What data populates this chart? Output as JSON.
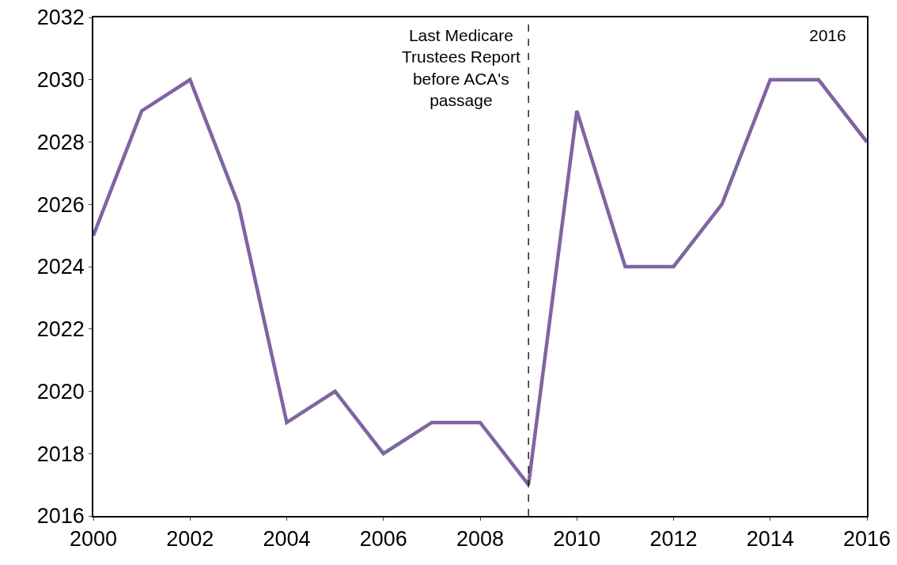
{
  "chart_data": {
    "type": "line",
    "x": [
      2000,
      2001,
      2002,
      2003,
      2004,
      2005,
      2006,
      2007,
      2008,
      2009,
      2010,
      2011,
      2012,
      2013,
      2014,
      2015,
      2016
    ],
    "series": [
      {
        "color": "#8064a2",
        "values": [
          2025,
          2029,
          2030,
          2026,
          2019,
          2020,
          2018,
          2019,
          2019,
          2017,
          2029,
          2024,
          2024,
          2026,
          2030,
          2030,
          2028
        ]
      }
    ],
    "xlim": [
      2000,
      2016
    ],
    "xticks": [
      2000,
      2002,
      2004,
      2006,
      2008,
      2010,
      2012,
      2014,
      2016
    ],
    "ylim": [
      2016,
      2032
    ],
    "yticks": [
      2016,
      2018,
      2020,
      2022,
      2024,
      2026,
      2028,
      2030,
      2032
    ],
    "ref_lines": [
      {
        "axis": "x",
        "value": 2009,
        "label": "Last Medicare Trustees Report before ACA's passage",
        "color": "#000000",
        "line_style": "dashed"
      }
    ],
    "annotations": [
      "2016"
    ],
    "grid": false,
    "marker": "none",
    "line_style": "solid"
  }
}
